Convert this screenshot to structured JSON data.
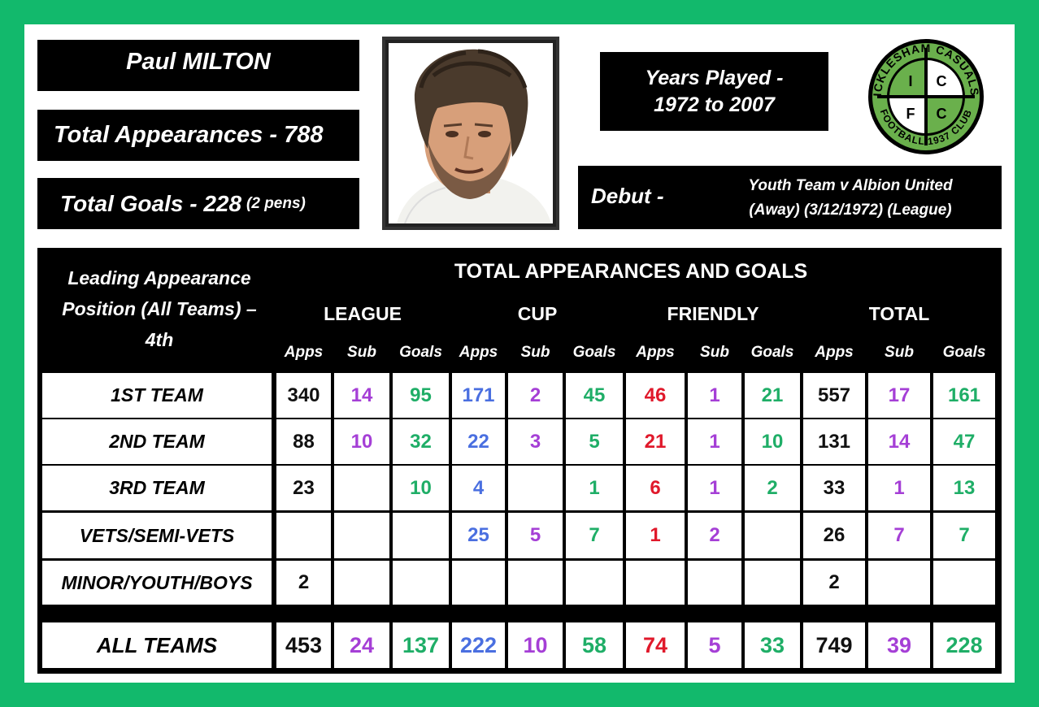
{
  "player": {
    "name": "Paul MILTON",
    "total_appearances": "Total Appearances - 788",
    "total_goals": "Total Goals - 228",
    "total_goals_note": "(2 pens)",
    "years_line1": "Years Played -",
    "years_line2": "1972 to 2007",
    "debut_label": "Debut -",
    "debut_line1": "Youth Team v Albion United",
    "debut_line2": "(Away) (3/12/1972) (League)"
  },
  "club_logo": {
    "top_text": "ICKLESHAM CASUALS",
    "bottom_text": "FOOTBALL 1937 CLUB",
    "letters": [
      "I",
      "C",
      "F",
      "C"
    ],
    "color": "#6ab04c"
  },
  "stats": {
    "leading_line1": "Leading Appearance",
    "leading_line2": "Position (All Teams) –",
    "leading_line3": "4th",
    "title": "TOTAL APPEARANCES AND GOALS",
    "groups": [
      "LEAGUE",
      "CUP",
      "FRIENDLY",
      "TOTAL"
    ],
    "subheaders": [
      "Apps",
      "Sub",
      "Goals",
      "Apps",
      "Sub",
      "Goals",
      "Apps",
      "Sub",
      "Goals",
      "Apps",
      "Sub",
      "Goals"
    ],
    "rows": [
      {
        "label": "1ST TEAM",
        "values": [
          "340",
          "14",
          "95",
          "171",
          "2",
          "45",
          "46",
          "1",
          "21",
          "557",
          "17",
          "161"
        ]
      },
      {
        "label": "2ND TEAM",
        "values": [
          "88",
          "10",
          "32",
          "22",
          "3",
          "5",
          "21",
          "1",
          "10",
          "131",
          "14",
          "47"
        ]
      },
      {
        "label": "3RD TEAM",
        "values": [
          "23",
          "",
          "10",
          "4",
          "",
          "1",
          "6",
          "1",
          "2",
          "33",
          "1",
          "13"
        ]
      },
      {
        "label": "VETS/SEMI-VETS",
        "values": [
          "",
          "",
          "",
          "25",
          "5",
          "7",
          "1",
          "2",
          "",
          "26",
          "7",
          "7"
        ]
      },
      {
        "label": "MINOR/YOUTH/BOYS",
        "values": [
          "2",
          "",
          "",
          "",
          "",
          "",
          "",
          "",
          "",
          "2",
          "",
          ""
        ]
      }
    ],
    "total_row": {
      "label": "ALL TEAMS",
      "values": [
        "453",
        "24",
        "137",
        "222",
        "10",
        "58",
        "74",
        "5",
        "33",
        "749",
        "39",
        "228"
      ]
    }
  },
  "colors": {
    "background": "#12b96c",
    "apps": "#111111",
    "sub": "#a53fd6",
    "goals": "#1fae67",
    "cup_apps": "#4a6fe0",
    "friendly_apps": "#e0192b"
  }
}
